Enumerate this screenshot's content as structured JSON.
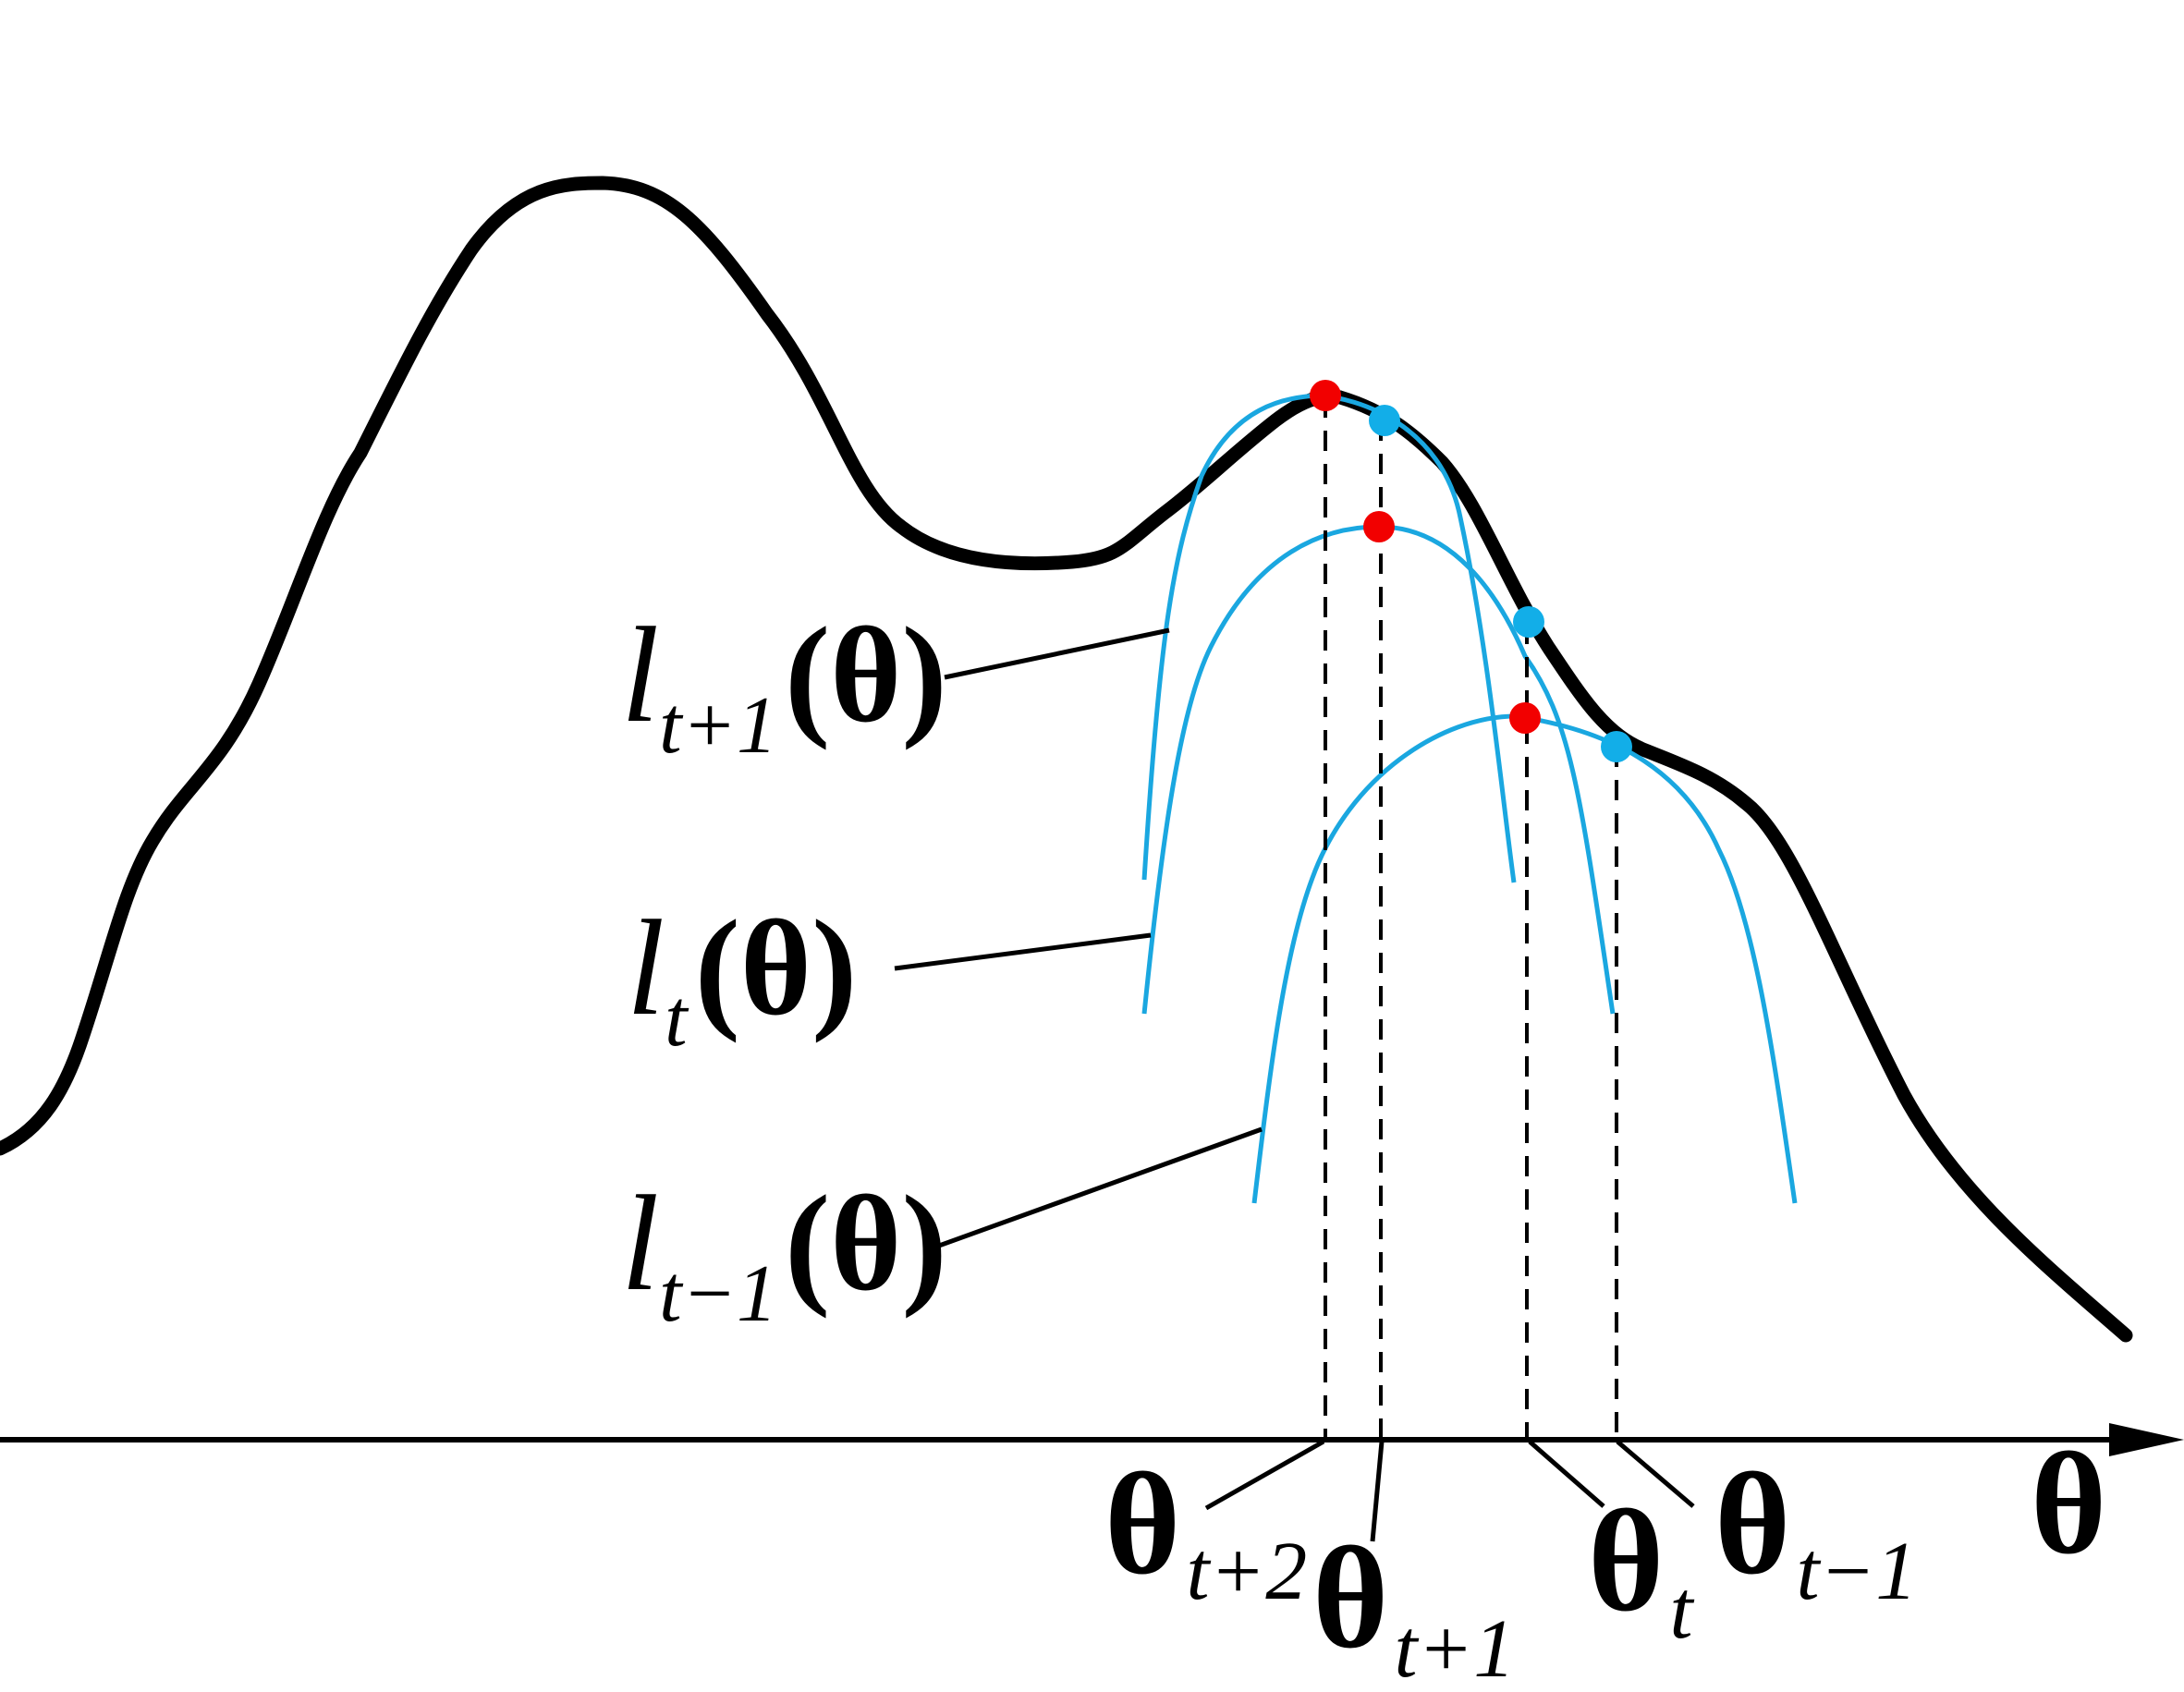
{
  "axis": {
    "label": "θ"
  },
  "colors": {
    "objective": "#000000",
    "surrogate": "#1aa7e0",
    "maximum_point": "#f20000",
    "evaluation_point": "#12aee8"
  },
  "surrogates": [
    {
      "fn": "l",
      "subscript": "t+1",
      "arg": "(θ)"
    },
    {
      "fn": "l",
      "subscript": "t",
      "arg": "(θ)"
    },
    {
      "fn": "l",
      "subscript": "t−1",
      "arg": "(θ)"
    }
  ],
  "iterates": [
    {
      "symbol": "θ",
      "subscript": "t+2"
    },
    {
      "symbol": "θ",
      "subscript": "t+1"
    },
    {
      "symbol": "θ",
      "subscript": "t"
    },
    {
      "symbol": "θ",
      "subscript": "t−1"
    }
  ]
}
